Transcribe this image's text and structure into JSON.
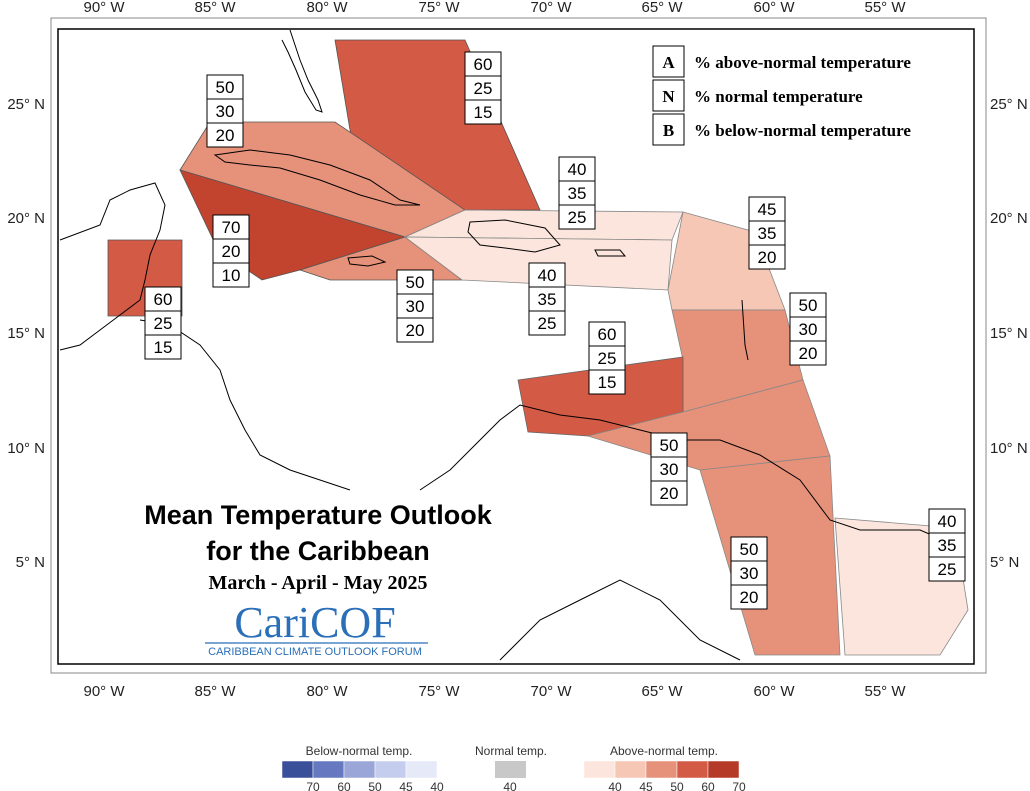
{
  "map": {
    "title_line1": "Mean Temperature Outlook",
    "title_line2": "for the Caribbean",
    "season": "March - April - May 2025",
    "logo_text": "CariCOF",
    "logo_subtitle": "CARIBBEAN CLIMATE OUTLOOK FORUM",
    "longitude_labels": [
      "90° W",
      "85° W",
      "80° W",
      "75° W",
      "70° W",
      "65° W",
      "60° W",
      "55° W"
    ],
    "latitude_labels": [
      "25° N",
      "20° N",
      "15° N",
      "10° N",
      "5° N"
    ]
  },
  "key": [
    {
      "letter": "A",
      "text": "% above-normal temperature"
    },
    {
      "letter": "N",
      "text": "% normal temperature"
    },
    {
      "letter": "B",
      "text": "% below-normal temperature"
    }
  ],
  "regions": [
    {
      "name": "bahamas",
      "A": "60",
      "N": "25",
      "B": "15",
      "color": "#d35a45"
    },
    {
      "name": "cuba",
      "A": "50",
      "N": "30",
      "B": "20",
      "color": "#e6917a"
    },
    {
      "name": "cayman-jamaica-west",
      "A": "70",
      "N": "20",
      "B": "10",
      "color": "#c2442f"
    },
    {
      "name": "belize-yucatan",
      "A": "60",
      "N": "25",
      "B": "15",
      "color": "#d35a45"
    },
    {
      "name": "jamaica",
      "A": "50",
      "N": "30",
      "B": "20",
      "color": "#e6917a"
    },
    {
      "name": "hispaniola-north",
      "A": "40",
      "N": "35",
      "B": "25",
      "color": "#fbe5dc"
    },
    {
      "name": "hispaniola-south",
      "A": "40",
      "N": "35",
      "B": "25",
      "color": "#fbe5dc"
    },
    {
      "name": "northern-leewards",
      "A": "45",
      "N": "35",
      "B": "20",
      "color": "#f6c7b5"
    },
    {
      "name": "windwards",
      "A": "50",
      "N": "30",
      "B": "20",
      "color": "#e6917a"
    },
    {
      "name": "abc-islands",
      "A": "60",
      "N": "25",
      "B": "15",
      "color": "#d35a45"
    },
    {
      "name": "trinidad",
      "A": "50",
      "N": "30",
      "B": "20",
      "color": "#e6917a"
    },
    {
      "name": "guyana",
      "A": "50",
      "N": "30",
      "B": "20",
      "color": "#e6917a"
    },
    {
      "name": "suriname-guiana",
      "A": "40",
      "N": "35",
      "B": "25",
      "color": "#fbe5dc"
    }
  ],
  "legend": {
    "below_label": "Below-normal temp.",
    "normal_label": "Normal temp.",
    "above_label": "Above-normal temp.",
    "below_ticks": [
      "70",
      "60",
      "50",
      "45",
      "40"
    ],
    "normal_ticks": [
      "40"
    ],
    "above_ticks": [
      "40",
      "45",
      "50",
      "60",
      "70"
    ],
    "below_colors": [
      "#3a4f9a",
      "#6678c0",
      "#9aa6d8",
      "#c5cdee",
      "#e6eaf8"
    ],
    "normal_color": "#c8c8c8",
    "above_colors": [
      "#fbe5dc",
      "#f6c7b5",
      "#e6917a",
      "#d35a45",
      "#b63a28"
    ]
  }
}
